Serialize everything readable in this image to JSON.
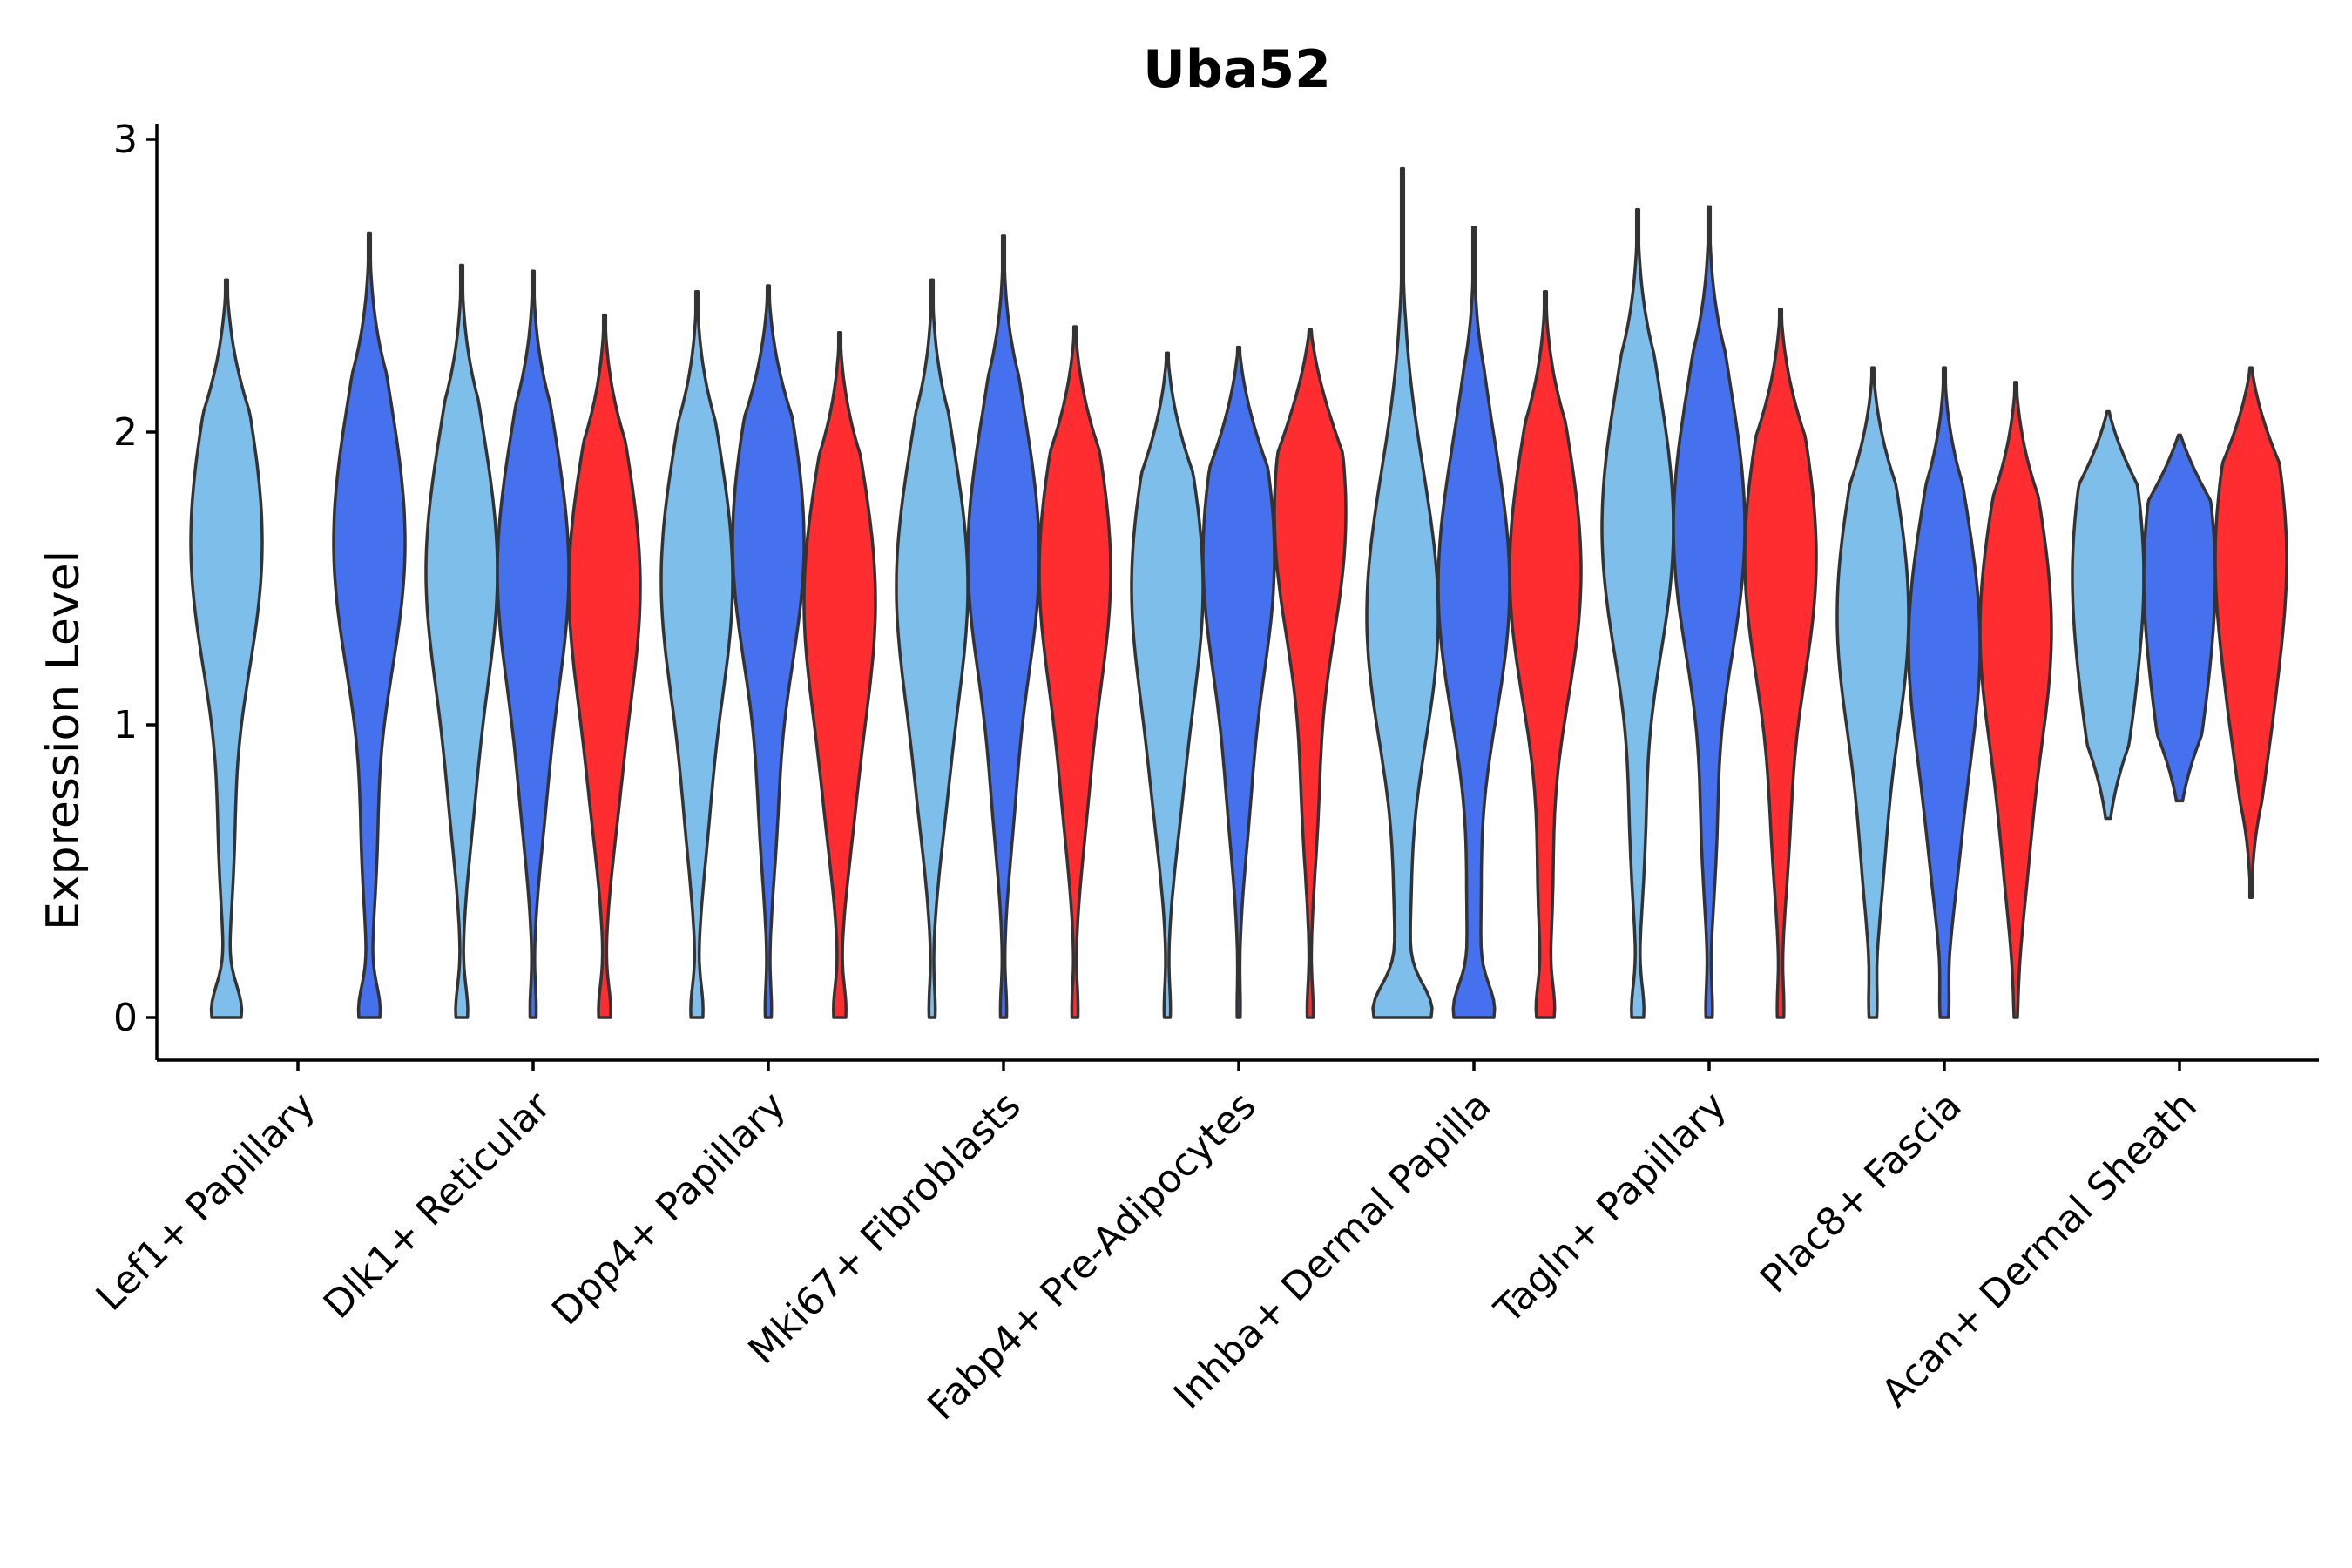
{
  "chart_data": {
    "type": "violin",
    "title": "Uba52",
    "xlabel": "",
    "ylabel": "Expression Level",
    "ylim": [
      -0.15,
      3.05
    ],
    "yticks": [
      0,
      1,
      2,
      3
    ],
    "legend": "none",
    "grid": false,
    "series_colors": {
      "light_blue": "#7EBEEB",
      "blue": "#4570EE",
      "red": "#FF2D30"
    },
    "categories": [
      "Lef1+ Papillary",
      "Dlk1+ Reticular",
      "Dpp4+ Papillary",
      "Mki67+ Fibroblasts",
      "Fabp4+ Pre-Adipocytes",
      "Inhba+ Dermal Papilla",
      "Tagln+ Papillary",
      "Plac8+ Fascia",
      "Acan+ Dermal Sheath"
    ],
    "violins": [
      {
        "group": "Lef1+ Papillary",
        "series": "light_blue",
        "min": 0,
        "max": 2.52,
        "mode": 1.55,
        "low_tail": 0.55,
        "zero_bulb": 0.5
      },
      {
        "group": "Lef1+ Papillary",
        "series": "blue",
        "min": 0,
        "max": 2.68,
        "mode": 1.55,
        "low_tail": 0.55,
        "zero_bulb": 0.35
      },
      {
        "group": "Dlk1+ Reticular",
        "series": "light_blue",
        "min": 0,
        "max": 2.57,
        "mode": 1.45,
        "low_tail": 0.7,
        "zero_bulb": 0.2
      },
      {
        "group": "Dlk1+ Reticular",
        "series": "blue",
        "min": 0,
        "max": 2.55,
        "mode": 1.45,
        "low_tail": 0.7,
        "zero_bulb": 0.1
      },
      {
        "group": "Dlk1+ Reticular",
        "series": "red",
        "min": 0,
        "max": 2.4,
        "mode": 1.4,
        "low_tail": 0.7,
        "zero_bulb": 0.2
      },
      {
        "group": "Dpp4+ Papillary",
        "series": "light_blue",
        "min": 0,
        "max": 2.48,
        "mode": 1.42,
        "low_tail": 0.65,
        "zero_bulb": 0.2
      },
      {
        "group": "Dpp4+ Papillary",
        "series": "blue",
        "min": 0,
        "max": 2.5,
        "mode": 1.55,
        "low_tail": 0.65,
        "zero_bulb": 0.1
      },
      {
        "group": "Dpp4+ Papillary",
        "series": "red",
        "min": 0,
        "max": 2.34,
        "mode": 1.35,
        "low_tail": 0.65,
        "zero_bulb": 0.2
      },
      {
        "group": "Mki67+ Fibroblasts",
        "series": "light_blue",
        "min": 0,
        "max": 2.52,
        "mode": 1.4,
        "low_tail": 0.7,
        "zero_bulb": 0.1
      },
      {
        "group": "Mki67+ Fibroblasts",
        "series": "blue",
        "min": 0,
        "max": 2.67,
        "mode": 1.5,
        "low_tail": 0.7,
        "zero_bulb": 0.1
      },
      {
        "group": "Mki67+ Fibroblasts",
        "series": "red",
        "min": 0,
        "max": 2.36,
        "mode": 1.45,
        "low_tail": 0.7,
        "zero_bulb": 0.1
      },
      {
        "group": "Fabp4+ Pre-Adipocytes",
        "series": "light_blue",
        "min": 0,
        "max": 2.27,
        "mode": 1.4,
        "low_tail": 0.7,
        "zero_bulb": 0.1
      },
      {
        "group": "Fabp4+ Pre-Adipocytes",
        "series": "blue",
        "min": 0,
        "max": 2.29,
        "mode": 1.5,
        "low_tail": 0.7,
        "zero_bulb": 0.05
      },
      {
        "group": "Fabp4+ Pre-Adipocytes",
        "series": "red",
        "min": 0,
        "max": 2.35,
        "mode": 1.65,
        "low_tail": 0.7,
        "zero_bulb": 0.1
      },
      {
        "group": "Inhba+ Dermal Papilla",
        "series": "light_blue",
        "min": 0,
        "max": 2.9,
        "mode": 1.3,
        "low_tail": 0.3,
        "zero_bulb": 0.9
      },
      {
        "group": "Inhba+ Dermal Papilla",
        "series": "blue",
        "min": 0,
        "max": 2.7,
        "mode": 1.4,
        "low_tail": 0.3,
        "zero_bulb": 0.6
      },
      {
        "group": "Inhba+ Dermal Papilla",
        "series": "red",
        "min": 0,
        "max": 2.48,
        "mode": 1.45,
        "low_tail": 0.4,
        "zero_bulb": 0.25
      },
      {
        "group": "Tagln+ Papillary",
        "series": "light_blue",
        "min": 0,
        "max": 2.76,
        "mode": 1.6,
        "low_tail": 0.6,
        "zero_bulb": 0.2
      },
      {
        "group": "Tagln+ Papillary",
        "series": "blue",
        "min": 0,
        "max": 2.77,
        "mode": 1.6,
        "low_tail": 0.6,
        "zero_bulb": 0.1
      },
      {
        "group": "Tagln+ Papillary",
        "series": "red",
        "min": 0,
        "max": 2.42,
        "mode": 1.5,
        "low_tail": 0.6,
        "zero_bulb": 0.1
      },
      {
        "group": "Plac8+ Fascia",
        "series": "light_blue",
        "min": 0,
        "max": 2.22,
        "mode": 1.3,
        "low_tail": 0.5,
        "zero_bulb": 0.1
      },
      {
        "group": "Plac8+ Fascia",
        "series": "blue",
        "min": 0,
        "max": 2.22,
        "mode": 1.2,
        "low_tail": 0.5,
        "zero_bulb": 0.1
      },
      {
        "group": "Plac8+ Fascia",
        "series": "red",
        "min": 0,
        "max": 2.17,
        "mode": 1.25,
        "low_tail": 0.5,
        "zero_bulb": 0.02
      },
      {
        "group": "Acan+ Dermal Sheath",
        "series": "light_blue",
        "min": 0.68,
        "max": 2.07,
        "mode": 1.45,
        "low_tail": 0.9,
        "zero_bulb": 0
      },
      {
        "group": "Acan+ Dermal Sheath",
        "series": "blue",
        "min": 0.74,
        "max": 1.99,
        "mode": 1.45,
        "low_tail": 0.9,
        "zero_bulb": 0
      },
      {
        "group": "Acan+ Dermal Sheath",
        "series": "red",
        "min": 0.41,
        "max": 2.22,
        "mode": 1.5,
        "low_tail": 0.9,
        "zero_bulb": 0
      }
    ]
  }
}
